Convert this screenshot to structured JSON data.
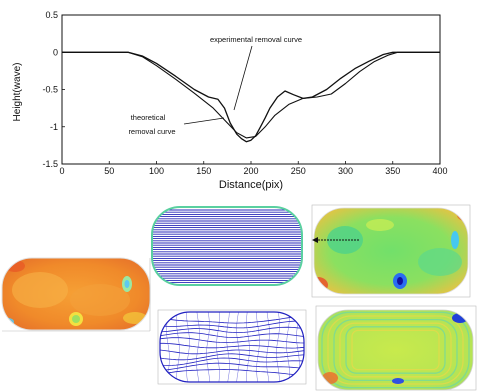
{
  "chart_data": {
    "type": "line",
    "xlabel": "Distance(pix)",
    "ylabel": "Height(wave)",
    "xlim": [
      0,
      400
    ],
    "ylim": [
      -1.5,
      0.5
    ],
    "x_ticks": [
      "0",
      "50",
      "100",
      "150",
      "200",
      "250",
      "300",
      "350",
      "400"
    ],
    "y_ticks": [
      "0.5",
      "0",
      "-0.5",
      "-1",
      "-1.5"
    ],
    "annotations": [
      "experimental removal curve",
      "theoretical",
      "removal curve"
    ],
    "series": [
      {
        "name": "experimental removal curve",
        "color": "#111111",
        "x": [
          0,
          70,
          85,
          100,
          120,
          140,
          155,
          165,
          172,
          178,
          185,
          190,
          195,
          200,
          205,
          210,
          215,
          220,
          228,
          236,
          245,
          255,
          265,
          280,
          295,
          310,
          325,
          340,
          350,
          400
        ],
        "y": [
          0,
          0,
          -0.05,
          -0.15,
          -0.32,
          -0.5,
          -0.6,
          -0.63,
          -0.75,
          -0.95,
          -1.1,
          -1.16,
          -1.2,
          -1.18,
          -1.12,
          -1.0,
          -0.88,
          -0.75,
          -0.6,
          -0.52,
          -0.57,
          -0.62,
          -0.6,
          -0.5,
          -0.35,
          -0.22,
          -0.12,
          -0.03,
          0,
          0
        ]
      },
      {
        "name": "theoretical removal curve",
        "color": "#111111",
        "x": [
          0,
          70,
          85,
          100,
          120,
          140,
          160,
          175,
          185,
          195,
          205,
          215,
          225,
          240,
          255,
          270,
          285,
          300,
          315,
          330,
          345,
          355,
          400
        ],
        "y": [
          0,
          0,
          -0.06,
          -0.18,
          -0.36,
          -0.55,
          -0.75,
          -0.95,
          -1.08,
          -1.15,
          -1.13,
          -1.0,
          -0.85,
          -0.7,
          -0.62,
          -0.6,
          -0.56,
          -0.42,
          -0.26,
          -0.13,
          -0.04,
          0,
          0
        ]
      }
    ]
  },
  "maps": {
    "left_map": {
      "name": "left-error-map"
    },
    "top_middle": {
      "name": "raster-scan-path"
    },
    "bottom_middle": {
      "name": "spiral-contour-path"
    },
    "top_right": {
      "name": "result-map-green"
    },
    "bottom_right": {
      "name": "residual-map"
    }
  }
}
